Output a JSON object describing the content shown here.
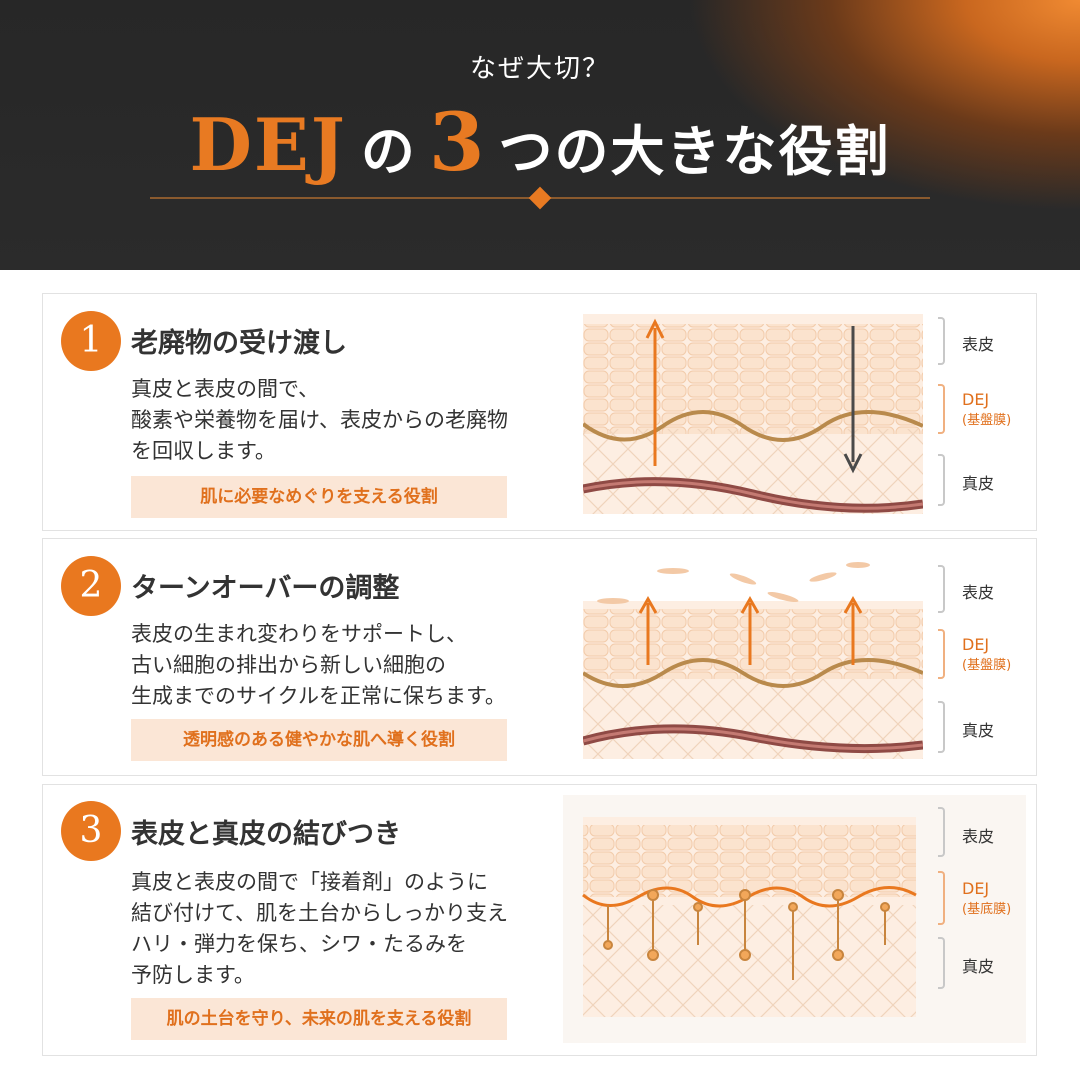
{
  "header": {
    "subtitle": "なぜ大切？",
    "title_dej": "DEJ",
    "title_no": "の",
    "title_three": "3",
    "title_rest": "つの大きな役割"
  },
  "colors": {
    "accent": "#e9781f",
    "tag_bg": "#fbe6d6",
    "header_bg": "#2a2a2a"
  },
  "cards": [
    {
      "number": "1",
      "title": "老廃物の受け渡し",
      "body": [
        "真皮と表皮の間で、",
        "酸素や栄養物を届け、表皮からの老廃物",
        "を回収します。"
      ],
      "tag": "肌に必要なめぐりを支える役割",
      "labels": {
        "top": "表皮",
        "mid": "DEJ",
        "mid_sub": "(基盤膜)",
        "bottom": "真皮"
      }
    },
    {
      "number": "2",
      "title": "ターンオーバーの調整",
      "body": [
        "表皮の生まれ変わりをサポートし、",
        "古い細胞の排出から新しい細胞の",
        "生成までのサイクルを正常に保ちます。"
      ],
      "tag": "透明感のある健やかな肌へ導く役割",
      "labels": {
        "top": "表皮",
        "mid": "DEJ",
        "mid_sub": "(基盤膜)",
        "bottom": "真皮"
      }
    },
    {
      "number": "3",
      "title": "表皮と真皮の結びつき",
      "body": [
        "真皮と表皮の間で「接着剤」のように",
        "結び付けて、肌を土台からしっかり支え",
        "ハリ・弾力を保ち、シワ・たるみを",
        "予防します。"
      ],
      "tag": "肌の土台を守り、未来の肌を支える役割",
      "labels": {
        "top": "表皮",
        "mid": "DEJ",
        "mid_sub": "(基底膜)",
        "bottom": "真皮"
      }
    }
  ]
}
